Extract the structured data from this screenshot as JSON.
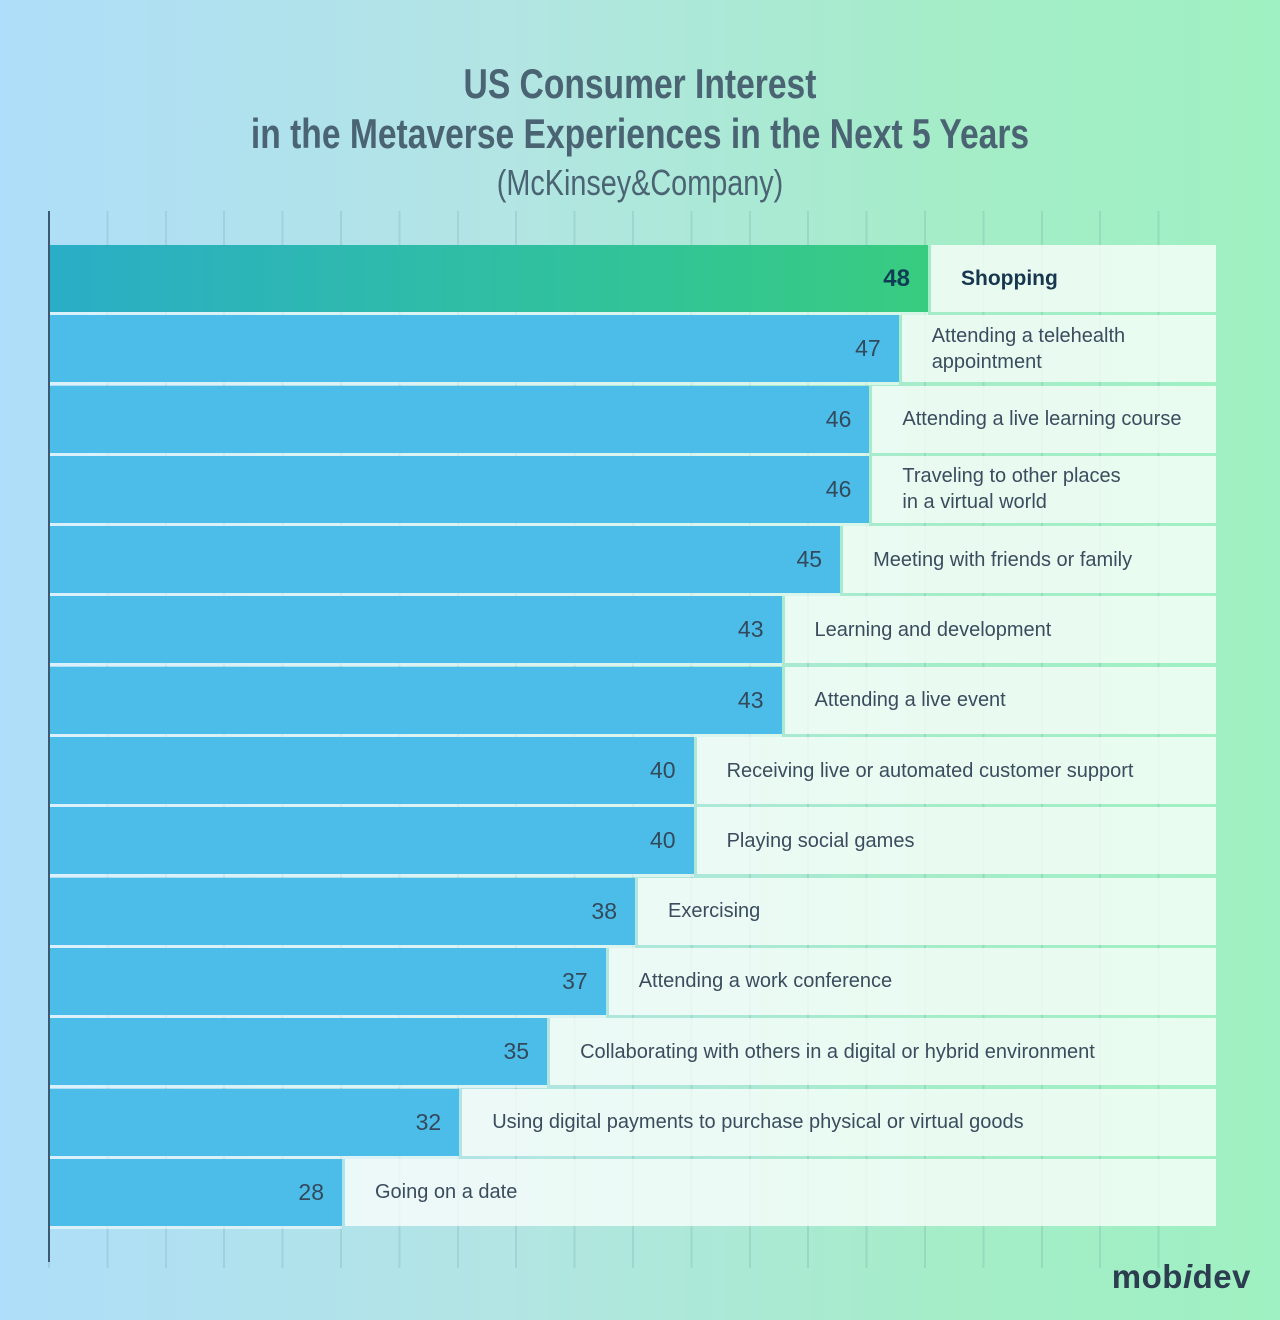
{
  "title": {
    "line1": "US Consumer Interest",
    "line2": "in the Metaverse Experiences in the Next 5 Years",
    "line3": "(McKinsey&Company)"
  },
  "logo": {
    "part1": "mob",
    "part2": "i",
    "part3": "dev"
  },
  "chart_data": {
    "type": "bar",
    "orientation": "horizontal",
    "title": "US Consumer Interest in the Metaverse Experiences in the Next 5 Years",
    "source": "McKinsey&Company",
    "categories": [
      "Shopping",
      "Attending a telehealth\nappointment",
      "Attending a live learning course",
      "Traveling to other places\nin a virtual world",
      "Meeting with friends or family",
      "Learning and development",
      "Attending a live event",
      "Receiving live or automated customer support",
      "Playing social games",
      "Exercising",
      "Attending a work conference",
      "Collaborating with others in a digital or hybrid environment",
      "Using digital payments to purchase physical or virtual goods",
      "Going on a date"
    ],
    "values": [
      48,
      47,
      46,
      46,
      45,
      43,
      43,
      40,
      40,
      38,
      37,
      35,
      32,
      28
    ],
    "highlight_index": 0,
    "legend": "none",
    "grid": "vertical ticks, unlabeled",
    "axis_labels": "none",
    "colors": {
      "bar": "#4cbde9",
      "highlight_gradient_start": "#2aadc7",
      "highlight_gradient_end": "#38cc80",
      "label_box": "#ecfaf2",
      "value_text": "#33495c",
      "highlight_value_text": "#0f3d55",
      "title_text": "#4a6473",
      "axis_line": "#3c5971",
      "background_left": "#aedef9",
      "background_right": "#9ff0c2"
    }
  }
}
